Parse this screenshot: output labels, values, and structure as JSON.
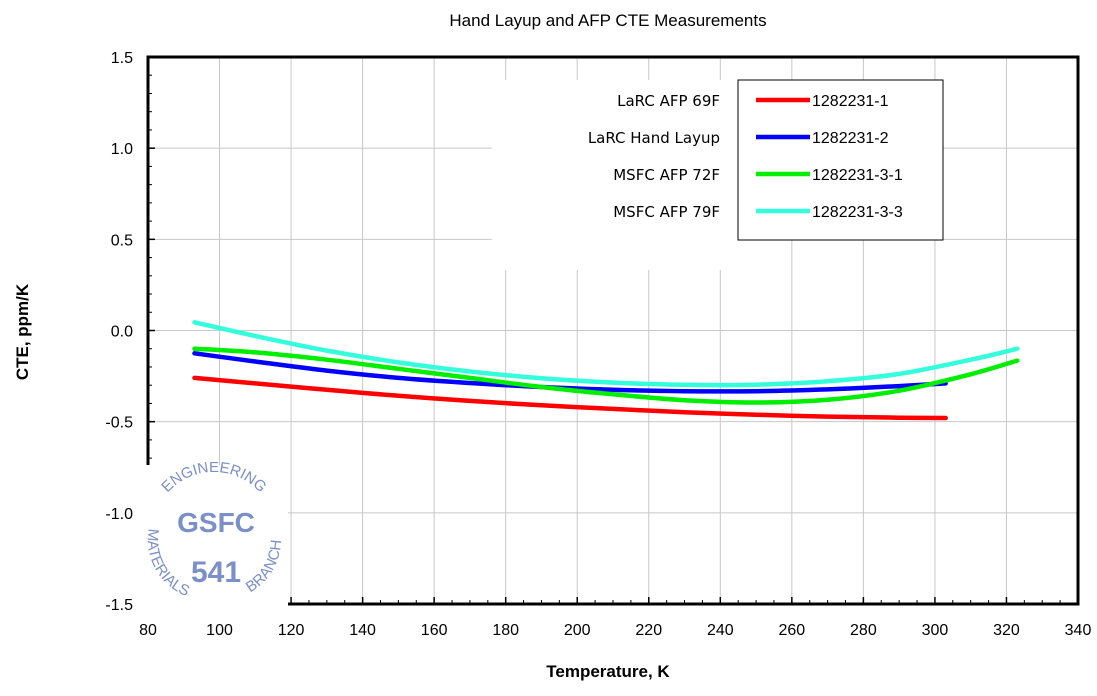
{
  "chart_data": {
    "type": "line",
    "title": "Hand Layup and AFP CTE Measurements",
    "xlabel": "Temperature,  K",
    "ylabel": "CTE, ppm/K",
    "xlim": [
      80,
      340
    ],
    "ylim": [
      -1.5,
      1.5
    ],
    "x_ticks": [
      "80",
      "100",
      "120",
      "140",
      "160",
      "180",
      "200",
      "220",
      "240",
      "260",
      "280",
      "300",
      "320",
      "340"
    ],
    "y_ticks": [
      "-1.5",
      "-1.0",
      "-0.5",
      "0.0",
      "0.5",
      "1.0",
      "1.5"
    ],
    "grid": true,
    "legend_position": "top-right",
    "series": [
      {
        "name": "1282231-1",
        "description": "LaRC AFP 69F",
        "color": "#ff0000",
        "x": [
          93,
          110,
          130,
          150,
          170,
          190,
          210,
          230,
          250,
          270,
          290,
          303
        ],
        "y": [
          -0.26,
          -0.29,
          -0.325,
          -0.358,
          -0.386,
          -0.41,
          -0.43,
          -0.448,
          -0.462,
          -0.472,
          -0.478,
          -0.48
        ]
      },
      {
        "name": "1282231-2",
        "description": "LaRC Hand Layup",
        "color": "#0000ff",
        "x": [
          93,
          110,
          130,
          150,
          170,
          190,
          210,
          230,
          250,
          270,
          290,
          303
        ],
        "y": [
          -0.125,
          -0.17,
          -0.22,
          -0.26,
          -0.288,
          -0.31,
          -0.325,
          -0.333,
          -0.333,
          -0.323,
          -0.305,
          -0.29
        ]
      },
      {
        "name": "1282231-3-1",
        "description": "MSFC AFP 72F",
        "color": "#00ee00",
        "x": [
          93,
          110,
          130,
          150,
          170,
          190,
          210,
          230,
          250,
          270,
          290,
          310,
          323
        ],
        "y": [
          -0.1,
          -0.12,
          -0.16,
          -0.21,
          -0.26,
          -0.31,
          -0.35,
          -0.382,
          -0.395,
          -0.38,
          -0.33,
          -0.24,
          -0.165
        ]
      },
      {
        "name": "1282231-3-3",
        "description": "MSFC AFP 79F",
        "color": "#33ffdd",
        "x": [
          93,
          110,
          130,
          150,
          170,
          190,
          210,
          230,
          250,
          270,
          290,
          310,
          323
        ],
        "y": [
          0.045,
          -0.03,
          -0.11,
          -0.175,
          -0.225,
          -0.262,
          -0.286,
          -0.298,
          -0.297,
          -0.278,
          -0.238,
          -0.16,
          -0.1
        ]
      }
    ]
  },
  "seal": {
    "top_text": "ENGINEERING",
    "left_text": "MATERIALS",
    "right_text": "BRANCH",
    "center_top": "GSFC",
    "center_bottom": "541",
    "color": "#7b8fc9"
  }
}
